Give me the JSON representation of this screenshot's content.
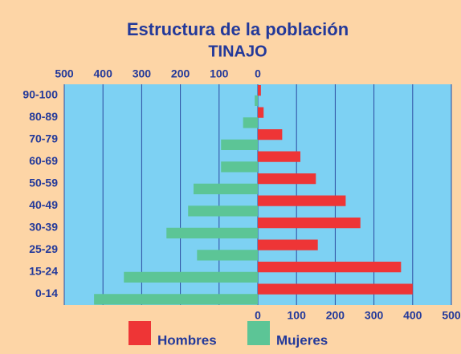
{
  "chart_data": {
    "type": "pyramid",
    "title": "Estructura de la población",
    "subtitle": "TINAJO",
    "categories": [
      "0-14",
      "15-24",
      "25-29",
      "30-39",
      "40-49",
      "50-59",
      "60-69",
      "70-79",
      "80-89",
      "90-100"
    ],
    "series": [
      {
        "name": "Hombres",
        "color": "#ee3536",
        "values": [
          400,
          370,
          155,
          265,
          227,
          150,
          110,
          63,
          15,
          8
        ]
      },
      {
        "name": "Mujeres",
        "color": "#5cc596",
        "values": [
          423,
          346,
          157,
          236,
          180,
          166,
          95,
          95,
          38,
          8
        ]
      }
    ],
    "xlim": [
      0,
      500
    ],
    "xticks": [
      0,
      100,
      200,
      300,
      400,
      500
    ],
    "grid": true
  }
}
